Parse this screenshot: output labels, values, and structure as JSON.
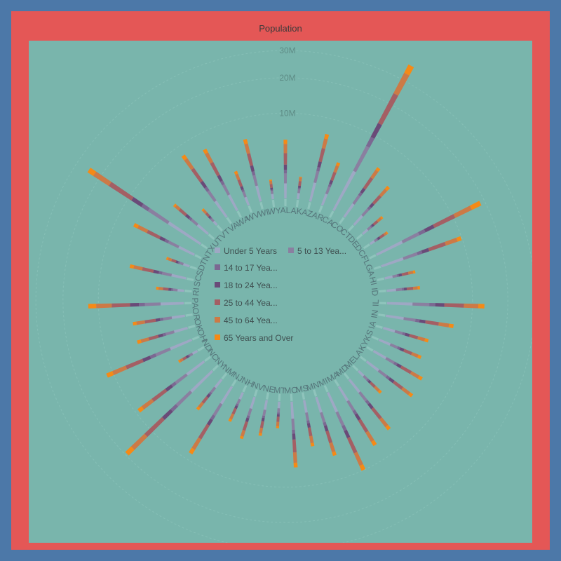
{
  "colors": {
    "outer": "#4c78a8",
    "frame": "#e45756",
    "plot": "#79b5ac",
    "segments": [
      "#9ea8c4",
      "#8a7fa0",
      "#7b6892",
      "#6a4a78",
      "#a45f64",
      "#cc7a46",
      "#f58a16"
    ],
    "label": "#55757a",
    "tick": "#5e8c86"
  },
  "chart_data": {
    "type": "bar",
    "polar": true,
    "stacked": true,
    "title": "Population",
    "categories": [
      "AL",
      "AK",
      "AZ",
      "AR",
      "CA",
      "CO",
      "CT",
      "DE",
      "DC",
      "FL",
      "GA",
      "HI",
      "ID",
      "IL",
      "IN",
      "IA",
      "KS",
      "KY",
      "LA",
      "ME",
      "MD",
      "MA",
      "MI",
      "MN",
      "MS",
      "MO",
      "MT",
      "NE",
      "NV",
      "NH",
      "NJ",
      "NM",
      "NY",
      "NC",
      "ND",
      "OH",
      "OK",
      "OR",
      "PA",
      "RI",
      "SC",
      "SD",
      "TN",
      "TX",
      "UT",
      "VT",
      "VA",
      "WA",
      "WV",
      "WI",
      "WY"
    ],
    "radial_ticks": [
      "10M",
      "20M",
      "30M"
    ],
    "radial_tick_values": [
      10000000,
      20000000,
      30000000
    ],
    "legend_labels": [
      "Under 5 Years",
      "5 to 13 Yea...",
      "14 to 17 Yea...",
      "18 to 24 Yea...",
      "25 to 44 Yea...",
      "45 to 64 Yea...",
      "65 Years and Over"
    ],
    "series": [
      {
        "name": "Under 5 Years",
        "values": [
          310504,
          52083,
          515910,
          202070,
          2704659,
          358280,
          211637,
          59319,
          36352,
          1140516,
          740521,
          87207,
          121746,
          894368,
          443089,
          201321,
          202010,
          284153,
          310716,
          71459,
          371787,
          383568,
          625526,
          358471,
          220813,
          399450,
          61114,
          132092,
          199175,
          75297,
          557421,
          148323,
          1208495,
          652823,
          41896,
          743750,
          266547,
          243483,
          737462,
          60934,
          303024,
          58566,
          416334,
          2027307,
          268916,
          32635,
          522672,
          433119,
          105435,
          362277,
          38253
        ]
      },
      {
        "name": "5 to 13 Years",
        "values": [
          552339,
          85640,
          828669,
          343207,
          4499890,
          587154,
          403658,
          99496,
          50439,
          1938695,
          1250460,
          134025,
          201192,
          1558919,
          780199,
          345409,
          345681,
          493536,
          542341,
          133656,
          651923,
          701752,
          1179503,
          606802,
          371502,
          690476,
          106088,
          215265,
          325650,
          145283,
          1011656,
          241326,
          2141490,
          1097890,
          67358,
          1340492,
          438926,
          424167,
          1345341,
          111408,
          517803,
          94438,
          725948,
          3277946,
          391771,
          62538,
          881525,
          750274,
          189649,
          640286,
          60890
        ]
      },
      {
        "name": "14 to 17 Years",
        "values": [
          259034,
          42153,
          362642,
          165999,
          2159981,
          261701,
          196918,
          47414,
          25225,
          925060,
          557860,
          62378,
          89702,
          739023,
          361393,
          165883,
          155822,
          229927,
          254916,
          69806,
          316873,
          341713,
          585169,
          275086,
          174405,
          331543,
          53156,
          105585,
          142976,
          73826,
          478505,
          112801,
          1058031,
          492964,
          33794,
          688692,
          199895,
          199925,
          679201,
          56198,
          245400,
          45305,
          337185,
          1420518,
          174405,
          33757,
          413221,
          356157,
          95227,
          313565,
          29314
        ]
      },
      {
        "name": "18 to 24 Years",
        "values": [
          450818,
          74257,
          601943,
          264160,
          3853788,
          466194,
          325110,
          84464,
          75569,
          1607297,
          919876,
          136401,
          147606,
          1311479,
          605863,
          306398,
          293114,
          381394,
          471275,
          112682,
          543470,
          665879,
          974480,
          507289,
          307025,
          560463,
          95232,
          185452,
          253990,
          127442,
          725187,
          206189,
          1999120,
          883397,
          82629,
          1081734,
          369372,
          338162,
          1203944,
          114274,
          462747,
          82869,
          550612,
          2454721,
          330315,
          61679,
          768475,
          628182,
          167103,
          553914,
          53980
        ]
      },
      {
        "name": "25 to 44 Years",
        "values": [
          1231572,
          198724,
          1804762,
          734955,
          10604510,
          1464939,
          968967,
          230183,
          193557,
          4782119,
          2846985,
          379610,
          406219,
          3596343,
          1724528,
          750505,
          726801,
          1179637,
          1162463,
          331809,
          1556225,
          1782449,
          2641860,
          1416063,
          764629,
          1569626,
          252837,
          457177,
          760283,
          338109,
          2318060,
          534858,
          5355235,
          2575603,
          154913,
          3080987,
          957085,
          1044056,
          3157759,
          277779,
          1210003,
          210178,
          1734180,
          7017731,
          772024,
          155419,
          2203286,
          1869372,
          470749,
          1487457,
          137338
        ]
      },
      {
        "name": "45 to 64 Years",
        "values": [
          1274932,
          199715,
          1607034,
          746614,
          9071029,
          1290094,
          1008612,
          282141,
          139218,
          4904484,
          2511453,
          351186,
          360613,
          3338648,
          1662404,
          787587,
          726507,
          1156130,
          1190106,
          394802,
          1493160,
          1752935,
          2744502,
          1366043,
          769300,
          1592338,
          264911,
          457177,
          643188,
          406158,
          2268436,
          527503,
          5120254,
          2451834,
          161664,
          3087736,
          979104,
          1036700,
          3414001,
          292051,
          1192767,
          211698,
          1664233,
          5970904,
          570642,
          188594,
          2098201,
          1762811,
          502326,
          1497654,
          147279
        ]
      },
      {
        "name": "65 Years and Over",
        "values": [
          649342,
          50277,
          862573,
          405018,
          4114496,
          511094,
          519837,
          121688,
          71009,
          3187797,
          981024,
          185209,
          201728,
          1576379,
          833009,
          451491,
          390567,
          565867,
          540317,
          227296,
          675834,
          859622,
          1217937,
          620548,
          411216,
          815123,
          137789,
          247281,
          297463,
          209993,
          1103520,
          275737,
          2545346,
          1085154,
          91395,
          1599164,
          538194,
          508108,
          1977154,
          170916,
          598008,
          113136,
          796213,
          2472223,
          239122,
          87869,
          911426,
          783102,
          288151,
          775301,
          65614
        ]
      }
    ]
  }
}
